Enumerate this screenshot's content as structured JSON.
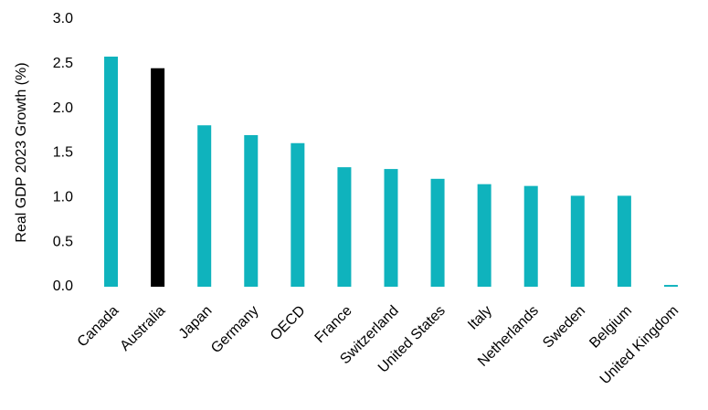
{
  "chart_data": {
    "type": "bar",
    "y_label": "Real GDP 2023 Growth (%)",
    "categories": [
      "Canada",
      "Australia",
      "Japan",
      "Germany",
      "OECD",
      "France",
      "Switzerland",
      "United States",
      "Italy",
      "Netherlands",
      "Sweden",
      "Belgium",
      "United Kingdom"
    ],
    "values": [
      2.58,
      2.45,
      1.81,
      1.7,
      1.61,
      1.34,
      1.32,
      1.21,
      1.15,
      1.13,
      1.02,
      1.02,
      0.02
    ],
    "colors": [
      "#0fb3bd",
      "#000000",
      "#0fb3bd",
      "#0fb3bd",
      "#0fb3bd",
      "#0fb3bd",
      "#0fb3bd",
      "#0fb3bd",
      "#0fb3bd",
      "#0fb3bd",
      "#0fb3bd",
      "#0fb3bd",
      "#0fb3bd"
    ],
    "ylim": [
      0,
      3
    ],
    "yticks": [
      {
        "value": 0,
        "label": "0.0"
      },
      0.5,
      {
        "value": 1,
        "label": "1.0"
      },
      1.5,
      {
        "value": 2,
        "label": "2.0"
      },
      2.5,
      {
        "value": 3,
        "label": "3.0"
      }
    ],
    "grid": false
  }
}
